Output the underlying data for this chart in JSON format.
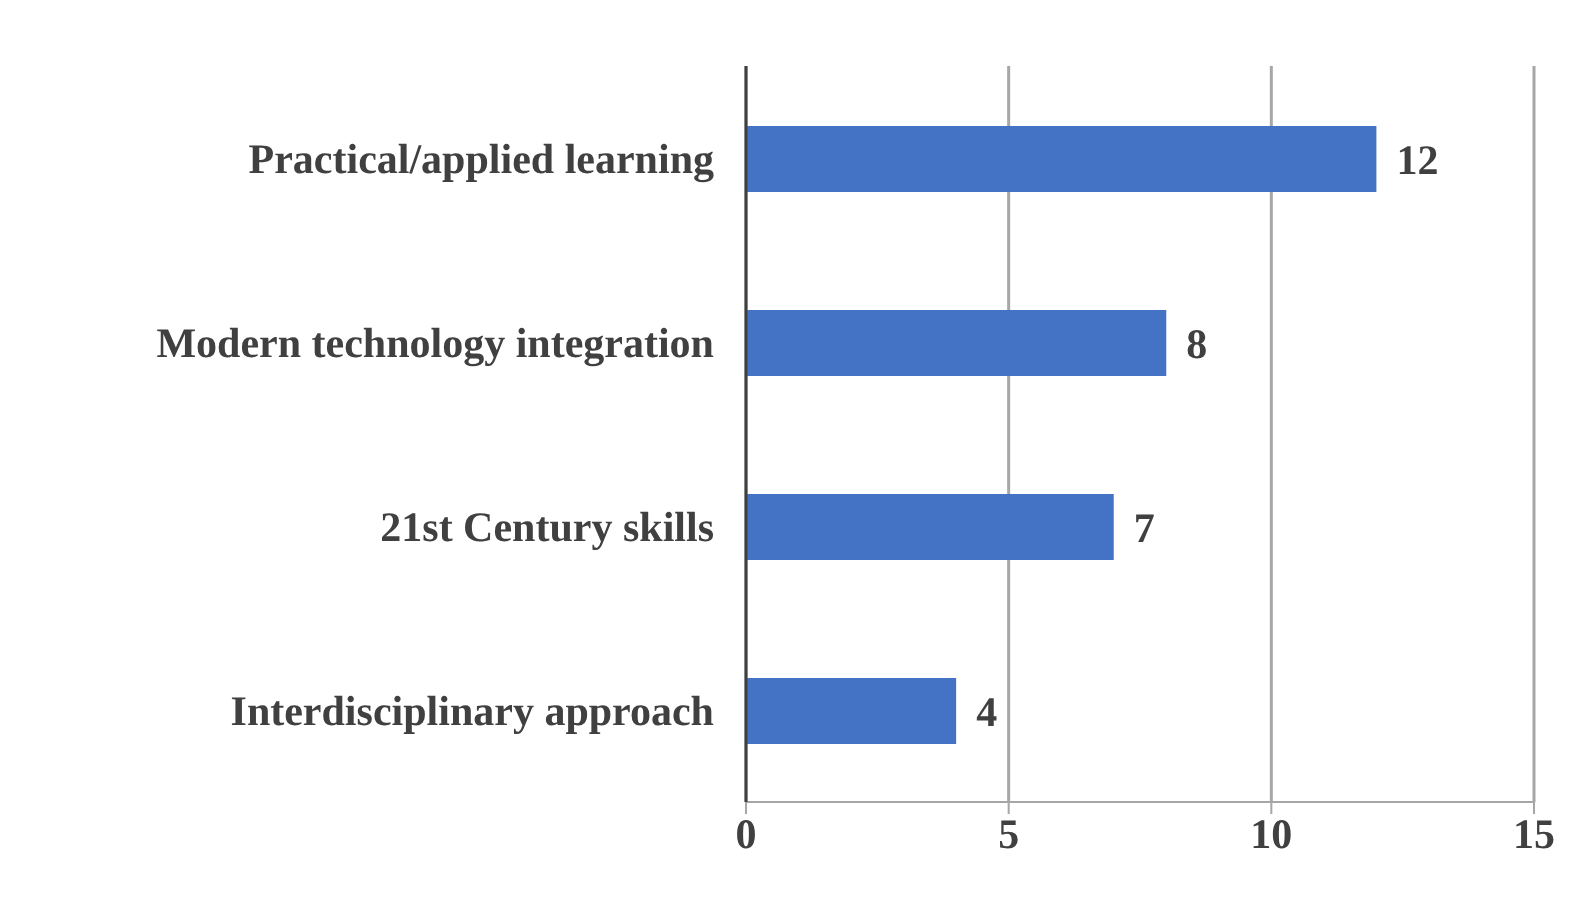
{
  "chart_data": {
    "type": "bar",
    "orientation": "horizontal",
    "categories": [
      "Practical/applied learning",
      "Modern technology integration",
      "21st Century skills",
      "Interdisciplinary approach"
    ],
    "values": [
      12,
      8,
      7,
      4
    ],
    "color": "#4472c4",
    "xlim": [
      0,
      15
    ],
    "xticks": [
      0,
      5,
      10,
      15
    ],
    "grid": "x",
    "data_labels": true
  }
}
